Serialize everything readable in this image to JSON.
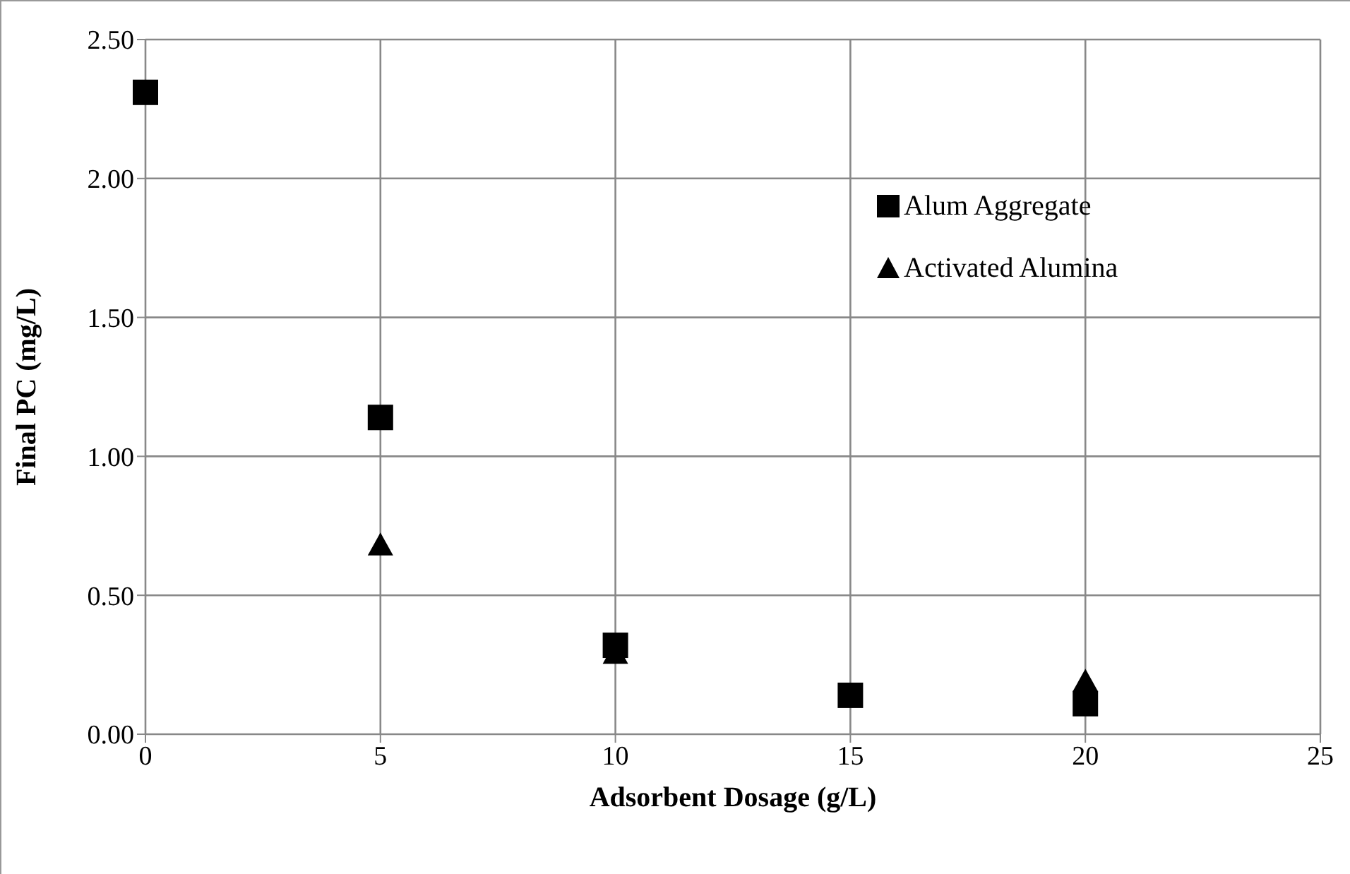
{
  "chart_data": {
    "type": "scatter",
    "xlabel": "Adsorbent Dosage (g/L)",
    "ylabel": "Final PC (mg/L)",
    "x": [
      0,
      5,
      10,
      15,
      20
    ],
    "series": [
      {
        "name": "Alum Aggregate",
        "color": "#000000",
        "marker": "square",
        "values": [
          2.31,
          1.14,
          0.32,
          0.14,
          0.11
        ]
      },
      {
        "name": "Activated Alumina",
        "color": "#000000",
        "marker": "triangle",
        "values": [
          null,
          0.68,
          0.29,
          null,
          0.19
        ]
      }
    ],
    "xlim": [
      0,
      25
    ],
    "xticks": [
      0,
      5,
      10,
      15,
      20,
      25
    ],
    "ylim": [
      0,
      2.5
    ],
    "yticks": [
      {
        "value": 0,
        "label": "0.00"
      },
      {
        "value": 0.5,
        "label": "0.50"
      },
      {
        "value": 1,
        "label": "1.00"
      },
      {
        "value": 1.5,
        "label": "1.50"
      },
      {
        "value": 2,
        "label": "2.00"
      },
      {
        "value": 2.5,
        "label": "2.50"
      }
    ],
    "grid": true,
    "legend": "top right"
  }
}
